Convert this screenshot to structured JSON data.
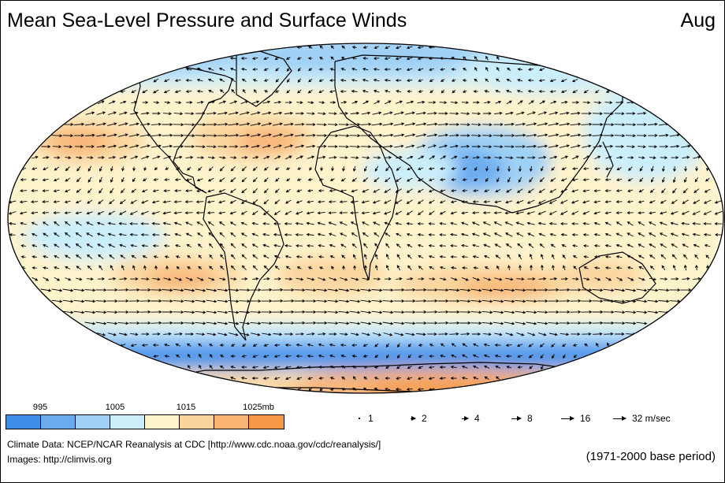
{
  "title": "Mean Sea-Level Pressure and Surface Winds",
  "month": "Aug",
  "colors": {
    "very_low": "#3d8ee8",
    "low": "#6aabf0",
    "mid_low": "#9fd0f5",
    "near_low": "#cbeefb",
    "near_high": "#fff3cc",
    "mid_high": "#fbd59e",
    "high": "#f9b373",
    "very_high": "#f59947",
    "land_outline": "#000000"
  },
  "colorbar": {
    "swatches": [
      "#3d8ee8",
      "#6aabf0",
      "#9fd0f5",
      "#cbeefb",
      "#fff3cc",
      "#fbd59e",
      "#f9b373",
      "#f59947"
    ],
    "ticks": [
      "995",
      "1005",
      "1015",
      "1025mb"
    ]
  },
  "wind_key": {
    "labels": [
      "1",
      "2",
      "4",
      "8",
      "16",
      "32 m/sec"
    ]
  },
  "credits": {
    "data": "Climate Data:  NCEP/NCAR Reanalysis at CDC [http://www.cdc.noaa.gov/cdc/reanalysis/]",
    "images": "Images:  http://climvis.org"
  },
  "base_period": "(1971-2000 base period)"
}
